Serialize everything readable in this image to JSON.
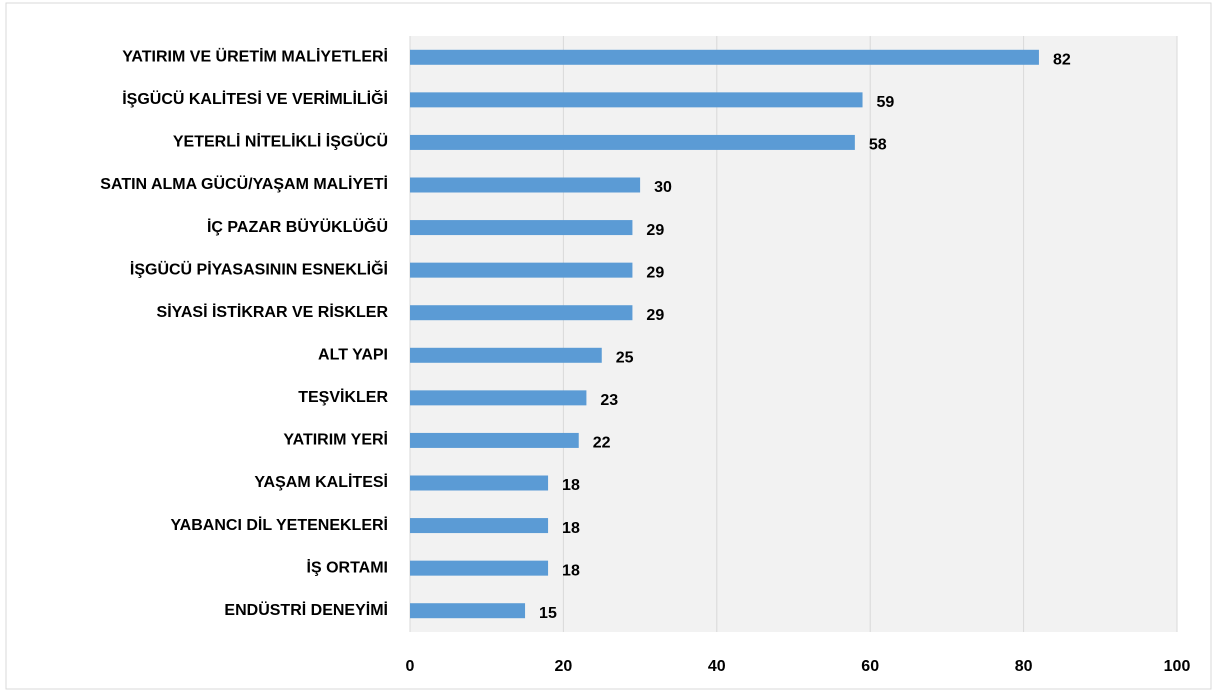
{
  "chart_data": {
    "type": "bar",
    "orientation": "horizontal",
    "categories": [
      "YATIRIM VE ÜRETİM MALİYETLERİ",
      "İŞGÜCÜ KALİTESİ VE VERİMLİLİĞİ",
      "YETERLİ NİTELİKLİ İŞGÜCÜ",
      "SATIN ALMA GÜCÜ/YAŞAM MALİYETİ",
      "İÇ PAZAR BÜYÜKLÜĞÜ",
      "İŞGÜCÜ PİYASASININ ESNEKLİĞİ",
      "SİYASİ İSTİKRAR VE RİSKLER",
      "ALT YAPI",
      "TEŞVİKLER",
      "YATIRIM YERİ",
      "YAŞAM KALİTESİ",
      "YABANCI DİL YETENEKLERİ",
      "İŞ ORTAMI",
      "ENDÜSTRİ DENEYİMİ"
    ],
    "values": [
      82,
      59,
      58,
      30,
      29,
      29,
      29,
      25,
      23,
      22,
      18,
      18,
      18,
      15
    ],
    "color": "#5b9bd5",
    "xlim": [
      0,
      100
    ],
    "xticks": [
      0,
      20,
      40,
      60,
      80,
      100
    ],
    "grid": true
  }
}
